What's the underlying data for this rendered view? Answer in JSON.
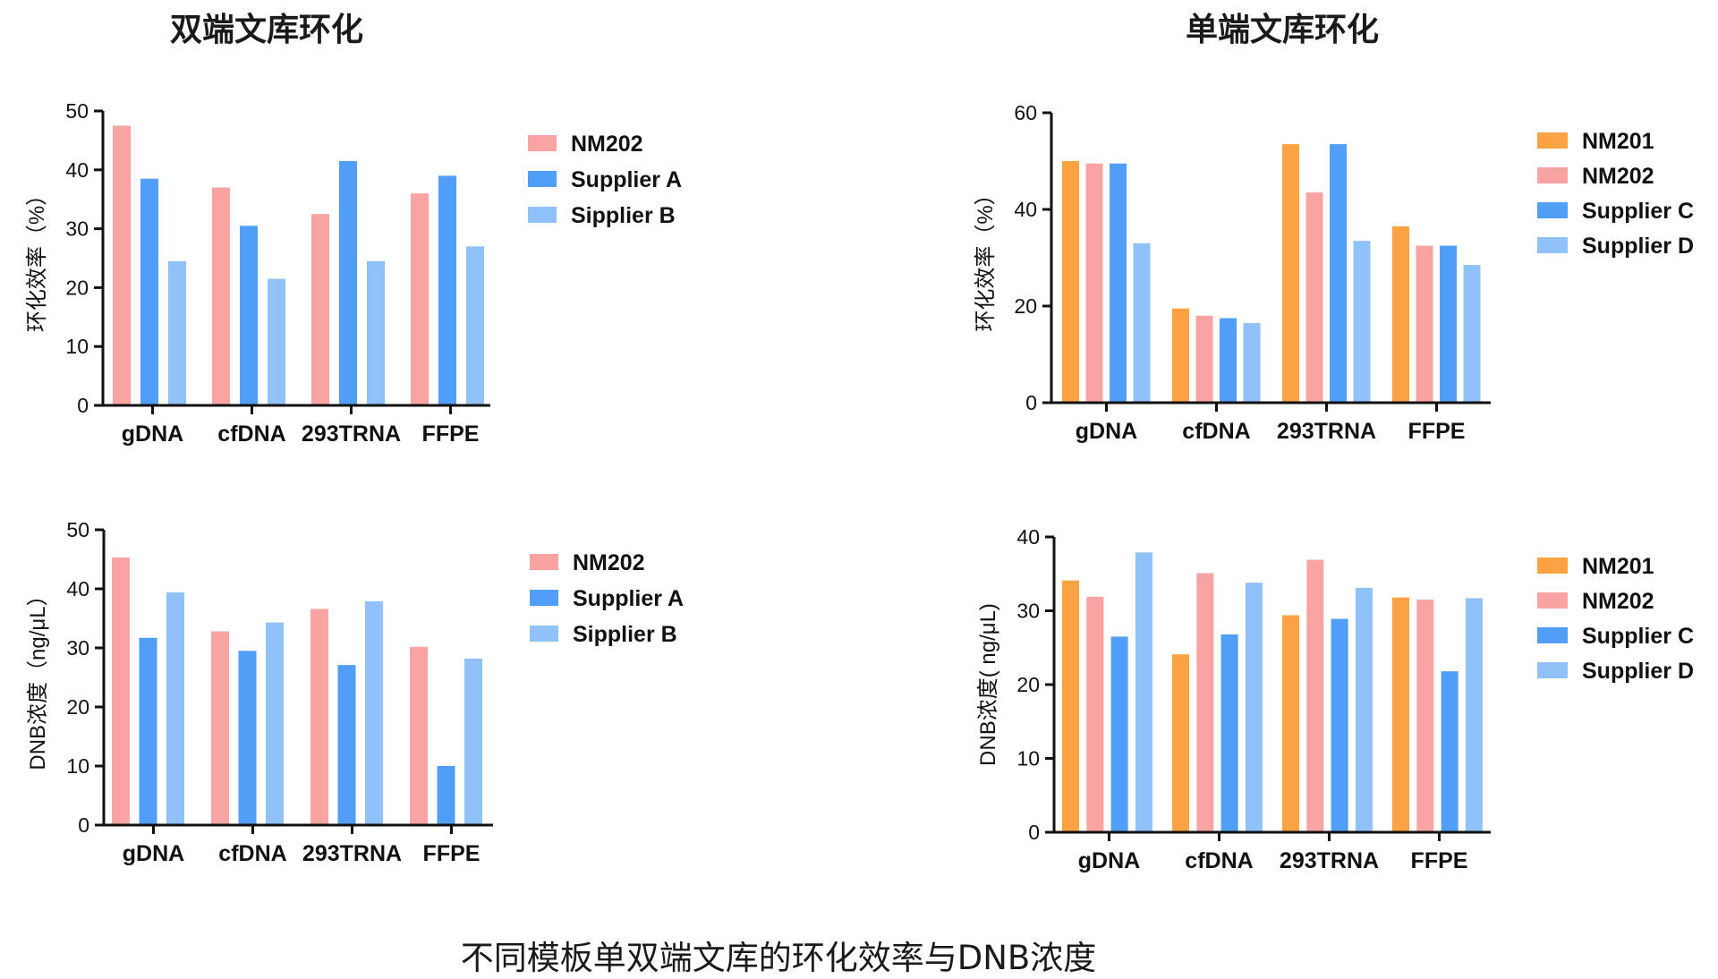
{
  "titles": {
    "left": "双端文库环化",
    "right": "单端文库环化"
  },
  "caption": "不同模板单双端文库的环化效率与DNB浓度",
  "colors": {
    "NM201": "#FBA343",
    "NM202": "#F9A3A3",
    "Supplier A": "#509EF5",
    "Sipplier B": "#90C1F9",
    "Supplier C": "#509EF5",
    "Supplier D": "#90C1F9"
  },
  "chart_data": [
    {
      "type": "bar",
      "categories": [
        "gDNA",
        "cfDNA",
        "293TRNA",
        "FFPE"
      ],
      "series": [
        {
          "name": "NM202",
          "values": [
            47.5,
            37,
            32.5,
            36
          ]
        },
        {
          "name": "Supplier A",
          "values": [
            38.5,
            30.5,
            41.5,
            39
          ]
        },
        {
          "name": "Sipplier B",
          "values": [
            24.5,
            21.5,
            24.5,
            27
          ]
        }
      ],
      "ylabel": "环化效率（%）",
      "ylim": [
        0,
        50
      ],
      "yticks": [
        0,
        10,
        20,
        30,
        40,
        50
      ],
      "grid": false,
      "legend": "right"
    },
    {
      "type": "bar",
      "categories": [
        "gDNA",
        "cfDNA",
        "293TRNA",
        "FFPE"
      ],
      "series": [
        {
          "name": "NM201",
          "values": [
            50,
            19.5,
            53.5,
            36.5
          ]
        },
        {
          "name": "NM202",
          "values": [
            49.5,
            18,
            43.5,
            32.5
          ]
        },
        {
          "name": "Supplier C",
          "values": [
            49.5,
            17.5,
            53.5,
            32.5
          ]
        },
        {
          "name": "Supplier D",
          "values": [
            33,
            16.5,
            33.5,
            28.5
          ]
        }
      ],
      "ylabel": "环化效率（%）",
      "ylim": [
        0,
        60
      ],
      "yticks": [
        0,
        20,
        40,
        60
      ],
      "grid": false,
      "legend": "right"
    },
    {
      "type": "bar",
      "categories": [
        "gDNA",
        "cfDNA",
        "293TRNA",
        "FFPE"
      ],
      "series": [
        {
          "name": "NM202",
          "values": [
            45.3,
            32.8,
            36.6,
            30.2
          ]
        },
        {
          "name": "Supplier A",
          "values": [
            31.7,
            29.5,
            27.1,
            10
          ]
        },
        {
          "name": "Sipplier B",
          "values": [
            39.4,
            34.3,
            37.9,
            28.2
          ]
        }
      ],
      "ylabel": "DNB浓度（ng/μL）",
      "ylim": [
        0,
        50
      ],
      "yticks": [
        0,
        10,
        20,
        30,
        40,
        50
      ],
      "grid": false,
      "legend": "right"
    },
    {
      "type": "bar",
      "categories": [
        "gDNA",
        "cfDNA",
        "293TRNA",
        "FFPE"
      ],
      "series": [
        {
          "name": "NM201",
          "values": [
            34.1,
            24.1,
            29.4,
            31.8
          ]
        },
        {
          "name": "NM202",
          "values": [
            31.9,
            35.1,
            36.9,
            31.5
          ]
        },
        {
          "name": "Supplier C",
          "values": [
            26.5,
            26.8,
            28.9,
            21.8
          ]
        },
        {
          "name": "Supplier D",
          "values": [
            37.9,
            33.8,
            33.1,
            31.7
          ]
        }
      ],
      "ylabel": "DNB浓度( ng/μL)",
      "ylim": [
        0,
        40
      ],
      "yticks": [
        0,
        10,
        20,
        30,
        40
      ],
      "grid": false,
      "legend": "right"
    }
  ]
}
